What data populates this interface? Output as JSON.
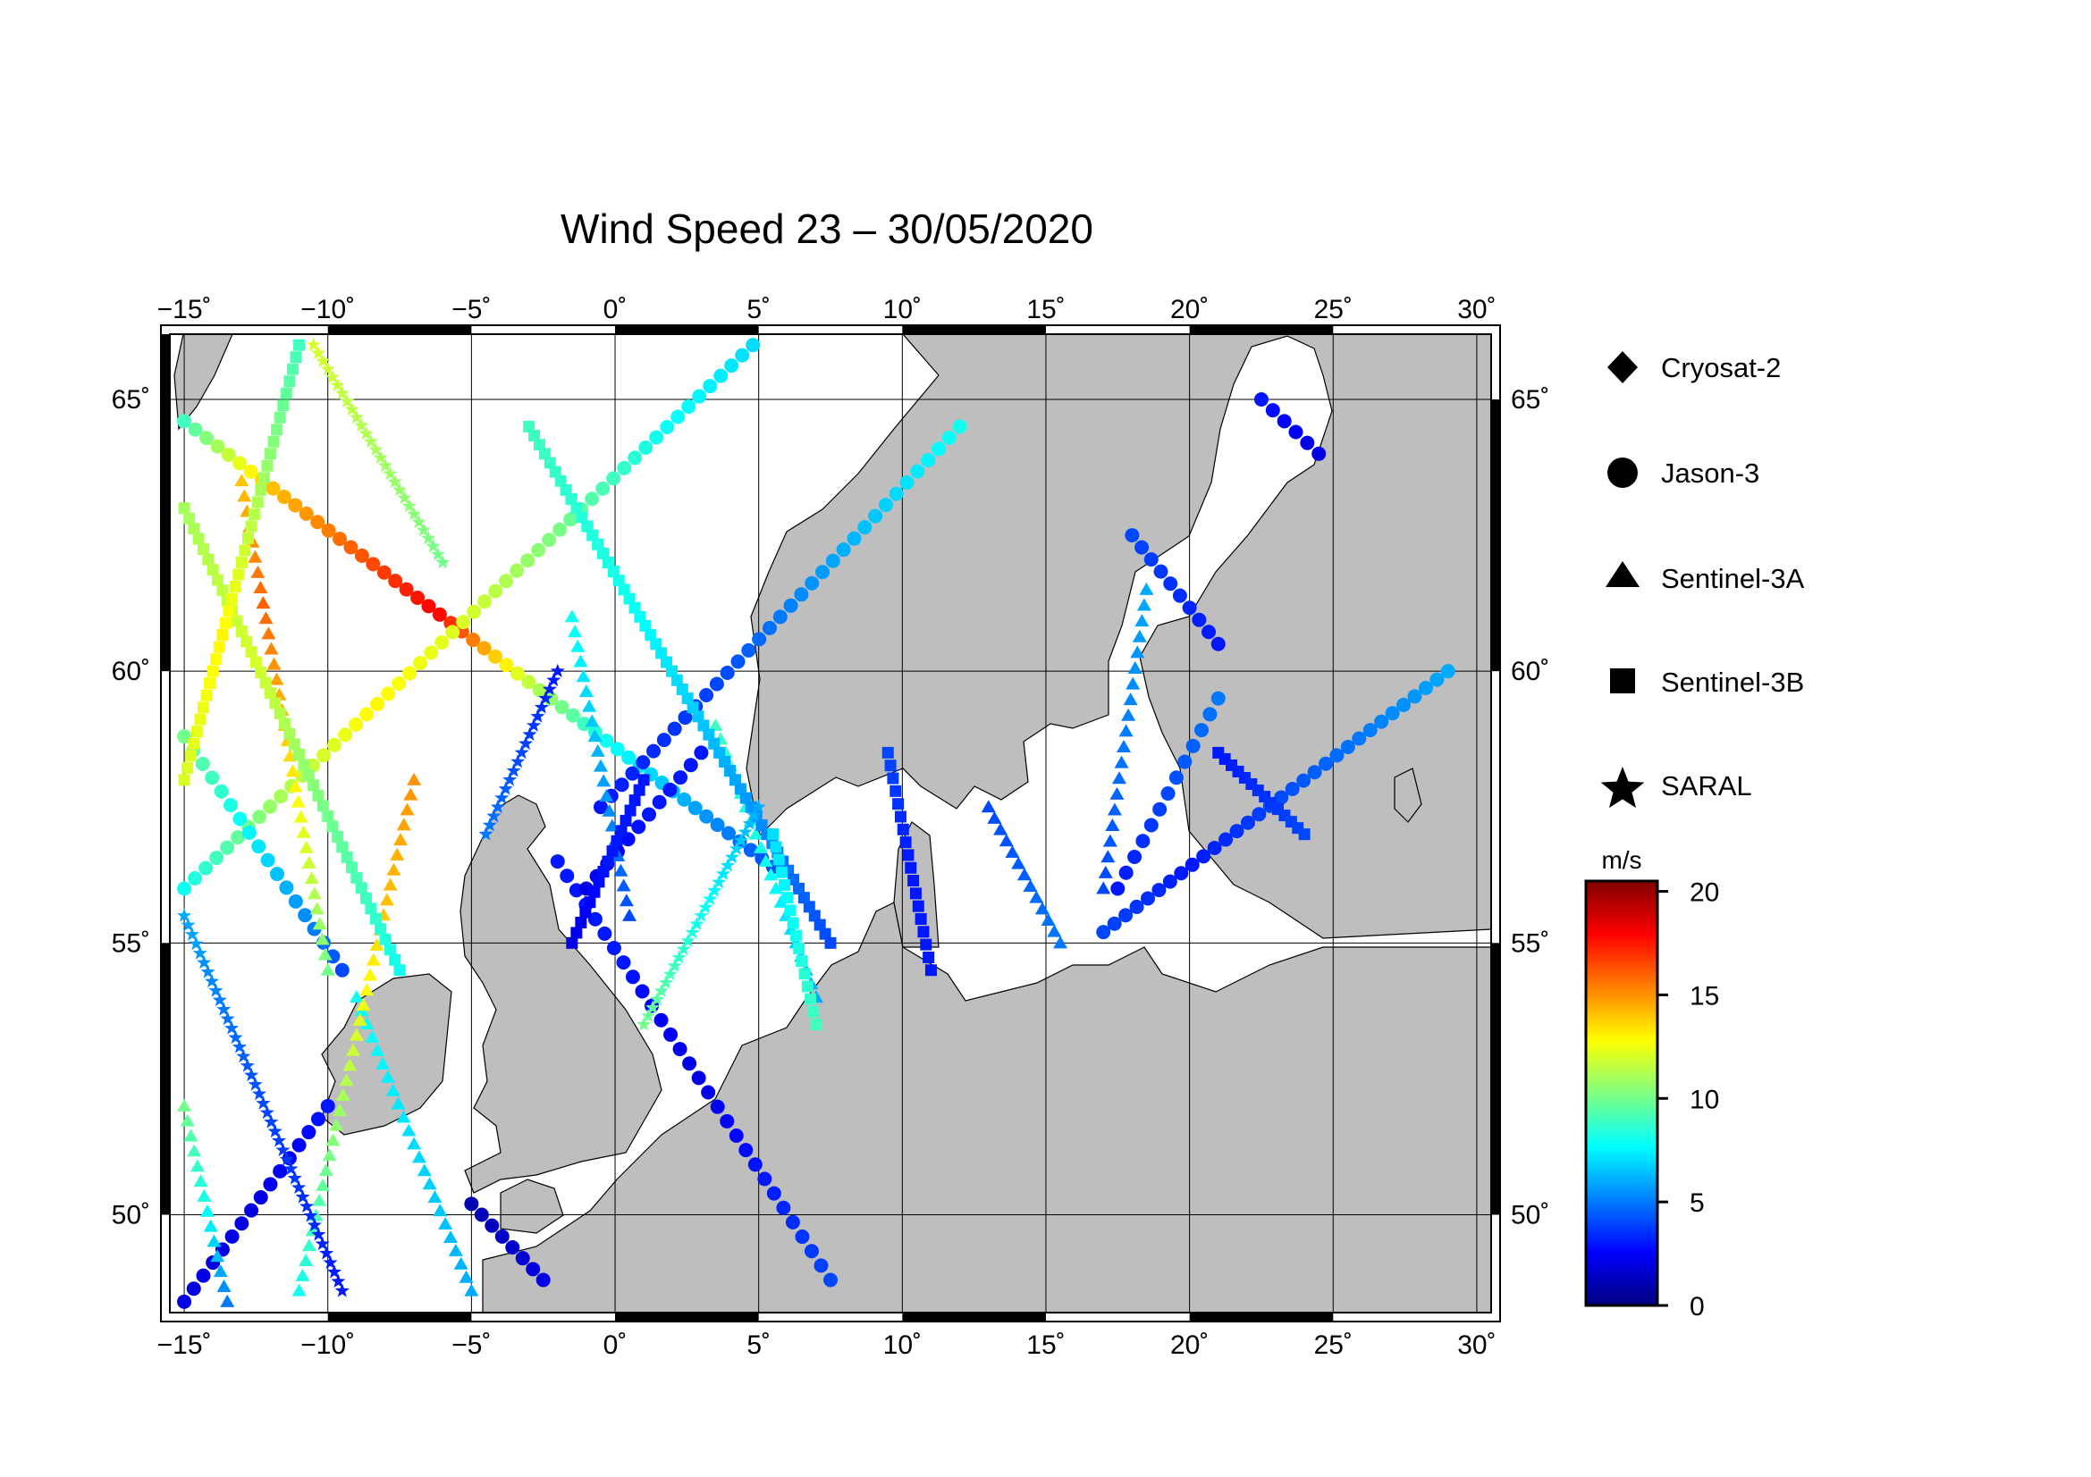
{
  "title": "Wind Speed 23 – 30/05/2020",
  "map": {
    "lon_range": [
      -15.5,
      30.5
    ],
    "lat_range": [
      48.2,
      66.2
    ],
    "lon_ticks": [
      -15,
      -10,
      -5,
      0,
      5,
      10,
      15,
      20,
      25,
      30
    ],
    "lat_ticks": [
      50,
      55,
      60,
      65
    ],
    "lon_tick_labels": [
      "−15˚",
      "−10˚",
      "−5˚",
      "0˚",
      "5˚",
      "10˚",
      "15˚",
      "20˚",
      "25˚",
      "30˚"
    ],
    "lat_tick_labels": [
      "50˚",
      "55˚",
      "60˚",
      "65˚"
    ],
    "land_color": "#bebebe",
    "sea_color": "#ffffff",
    "grid_color": "#000000"
  },
  "legend": {
    "items": [
      {
        "label": "Cryosat-2",
        "symbol": "diamond-icon"
      },
      {
        "label": "Jason-3",
        "symbol": "circle-icon"
      },
      {
        "label": "Sentinel-3A",
        "symbol": "triangle-icon"
      },
      {
        "label": "Sentinel-3B",
        "symbol": "square-icon"
      },
      {
        "label": "SARAL",
        "symbol": "star-icon"
      }
    ]
  },
  "colorbar": {
    "unit": "m/s",
    "min": 0,
    "max": 20.5,
    "ticks": [
      0,
      5,
      10,
      15,
      20
    ],
    "tick_labels": [
      "0",
      "5",
      "10",
      "15",
      "20"
    ],
    "colormap": "jet"
  },
  "chart_data": {
    "type": "scatter",
    "title": "Wind Speed 23 – 30/05/2020",
    "x_unit": "degrees longitude",
    "y_unit": "degrees latitude",
    "value_unit": "m/s",
    "xlim": [
      -15.5,
      30.5
    ],
    "ylim": [
      48.2,
      66.2
    ],
    "series": [
      {
        "name": "Jason-3",
        "marker": "circle",
        "tracks": [
          {
            "start": [
              -15.0,
              64.6
            ],
            "end": [
              5.5,
              56.4
            ],
            "step": 0.42,
            "wind": [
              9,
              14,
              16,
              18,
              12,
              8,
              6,
              4
            ]
          },
          {
            "start": [
              -15.0,
              56.0
            ],
            "end": [
              4.8,
              66.0
            ],
            "step": 0.42,
            "wind": [
              8,
              11,
              13,
              12,
              10,
              8,
              7
            ]
          },
          {
            "start": [
              -9.5,
              54.5
            ],
            "end": [
              -15.0,
              58.8
            ],
            "step": 0.42,
            "wind": [
              4,
              6,
              8,
              10
            ]
          },
          {
            "start": [
              -2.0,
              56.5
            ],
            "end": [
              7.5,
              48.8
            ],
            "step": 0.42,
            "wind": [
              3,
              3,
              2,
              3,
              4
            ]
          },
          {
            "start": [
              -0.5,
              57.5
            ],
            "end": [
              12.0,
              64.5
            ],
            "step": 0.42,
            "wind": [
              3,
              4,
              6,
              8
            ]
          },
          {
            "start": [
              -15.0,
              48.4
            ],
            "end": [
              -10.0,
              52.0
            ],
            "step": 0.42,
            "wind": [
              2,
              2,
              3
            ]
          },
          {
            "start": [
              -5.0,
              50.2
            ],
            "end": [
              -2.5,
              48.8
            ],
            "step": 0.42,
            "wind": [
              1,
              2
            ]
          },
          {
            "start": [
              17.0,
              55.2
            ],
            "end": [
              29.0,
              60.0
            ],
            "step": 0.42,
            "wind": [
              4,
              3,
              4,
              5,
              6
            ]
          },
          {
            "start": [
              18.0,
              62.5
            ],
            "end": [
              21.0,
              60.5
            ],
            "step": 0.42,
            "wind": [
              4,
              3
            ]
          },
          {
            "start": [
              22.5,
              65.0
            ],
            "end": [
              24.5,
              64.0
            ],
            "step": 0.42,
            "wind": [
              3,
              2
            ]
          },
          {
            "start": [
              17.5,
              56.0
            ],
            "end": [
              21.0,
              59.5
            ],
            "step": 0.42,
            "wind": [
              3,
              4,
              5
            ]
          },
          {
            "start": [
              -1.0,
              56.0
            ],
            "end": [
              3.0,
              58.5
            ],
            "step": 0.42,
            "wind": [
              2,
              3,
              3
            ]
          }
        ]
      },
      {
        "name": "Sentinel-3A",
        "marker": "triangle",
        "tracks": [
          {
            "start": [
              -13.5,
              48.4
            ],
            "end": [
              -15.0,
              52.0
            ],
            "step": 0.3,
            "wind": [
              5,
              8,
              10
            ]
          },
          {
            "start": [
              -10.0,
              54.5
            ],
            "end": [
              -13.0,
              63.5
            ],
            "step": 0.3,
            "wind": [
              10,
              12,
              14,
              16,
              14
            ]
          },
          {
            "start": [
              -5.0,
              48.6
            ],
            "end": [
              -9.0,
              54.0
            ],
            "step": 0.3,
            "wind": [
              6,
              7,
              8
            ]
          },
          {
            "start": [
              -11.0,
              48.6
            ],
            "end": [
              -7.0,
              58.0
            ],
            "step": 0.3,
            "wind": [
              8,
              10,
              12,
              14,
              15
            ]
          },
          {
            "start": [
              0.5,
              55.5
            ],
            "end": [
              -1.5,
              61.0
            ],
            "step": 0.3,
            "wind": [
              4,
              6,
              8
            ]
          },
          {
            "start": [
              17.0,
              56.0
            ],
            "end": [
              18.5,
              61.5
            ],
            "step": 0.3,
            "wind": [
              4,
              5,
              6
            ]
          },
          {
            "start": [
              15.5,
              55.0
            ],
            "end": [
              13.0,
              57.5
            ],
            "step": 0.3,
            "wind": [
              5,
              4
            ]
          },
          {
            "start": [
              7.0,
              54.0
            ],
            "end": [
              3.5,
              59.0
            ],
            "step": 0.3,
            "wind": [
              6,
              8,
              9
            ]
          }
        ]
      },
      {
        "name": "Sentinel-3B",
        "marker": "square",
        "tracks": [
          {
            "start": [
              -15.0,
              63.0
            ],
            "end": [
              -7.5,
              54.5
            ],
            "step": 0.25,
            "wind": [
              11,
              12,
              10,
              8
            ]
          },
          {
            "start": [
              -3.0,
              64.5
            ],
            "end": [
              7.5,
              55.0
            ],
            "step": 0.25,
            "wind": [
              9,
              8,
              6,
              4
            ]
          },
          {
            "start": [
              1.0,
              58.0
            ],
            "end": [
              -1.5,
              55.0
            ],
            "step": 0.25,
            "wind": [
              3,
              3,
              2
            ]
          },
          {
            "start": [
              9.5,
              58.5
            ],
            "end": [
              11.0,
              54.5
            ],
            "step": 0.25,
            "wind": [
              4,
              3,
              3
            ]
          },
          {
            "start": [
              21.0,
              58.5
            ],
            "end": [
              24.0,
              57.0
            ],
            "step": 0.25,
            "wind": [
              3,
              4
            ]
          },
          {
            "start": [
              5.5,
              57.0
            ],
            "end": [
              7.0,
              53.5
            ],
            "step": 0.25,
            "wind": [
              7,
              8,
              9
            ]
          },
          {
            "start": [
              -15.0,
              58.0
            ],
            "end": [
              -11.0,
              66.0
            ],
            "step": 0.25,
            "wind": [
              12,
              13,
              11,
              9
            ]
          }
        ]
      },
      {
        "name": "SARAL",
        "marker": "star",
        "tracks": [
          {
            "start": [
              -9.5,
              48.6
            ],
            "end": [
              -15.0,
              55.5
            ],
            "step": 0.22,
            "wind": [
              3,
              4,
              6
            ]
          },
          {
            "start": [
              5.0,
              57.5
            ],
            "end": [
              1.0,
              53.5
            ],
            "step": 0.22,
            "wind": [
              6,
              8,
              10
            ]
          },
          {
            "start": [
              -4.5,
              57.0
            ],
            "end": [
              -2.0,
              60.0
            ],
            "step": 0.22,
            "wind": [
              5,
              4,
              3
            ]
          },
          {
            "start": [
              -6.0,
              62.0
            ],
            "end": [
              -10.5,
              66.0
            ],
            "step": 0.22,
            "wind": [
              10,
              11,
              12
            ]
          }
        ]
      },
      {
        "name": "Cryosat-2",
        "marker": "diamond",
        "tracks": []
      }
    ]
  }
}
